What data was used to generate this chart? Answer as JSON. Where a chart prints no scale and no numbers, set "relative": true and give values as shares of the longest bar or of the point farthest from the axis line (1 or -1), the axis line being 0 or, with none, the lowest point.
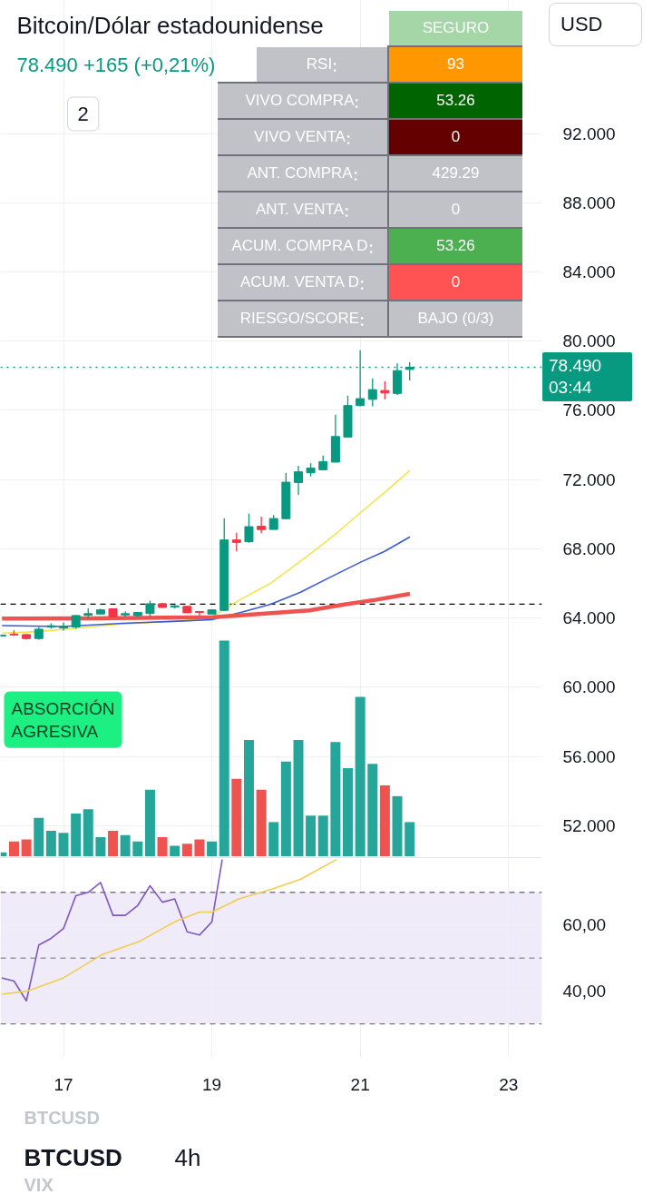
{
  "chart_data": [
    {
      "type": "candlestick",
      "title": "Bitcoin/Dólar estadounidense",
      "subtitle": "78.490 +165 (+0,21%)",
      "x": [
        16.167,
        16.333,
        16.5,
        16.667,
        16.833,
        17,
        17.167,
        17.333,
        17.5,
        17.667,
        17.833,
        18,
        18.167,
        18.333,
        18.5,
        18.667,
        18.833,
        19,
        19.167,
        19.333,
        19.5,
        19.667,
        19.833,
        20,
        20.167,
        20.333,
        20.5,
        20.667,
        20.833,
        21,
        21.167,
        21.333,
        21.5,
        21.667
      ],
      "ohlc": [
        [
          62.96,
          63.03,
          62.93,
          63.01
        ],
        [
          63.06,
          63.3,
          62.95,
          63.02
        ],
        [
          63.04,
          63.07,
          62.74,
          62.81
        ],
        [
          62.81,
          63.48,
          62.74,
          63.35
        ],
        [
          63.48,
          63.69,
          63.37,
          63.55
        ],
        [
          63.42,
          63.74,
          63.27,
          63.51
        ],
        [
          63.48,
          64.18,
          63.37,
          64.14
        ],
        [
          64.16,
          64.56,
          63.97,
          64.25
        ],
        [
          64.23,
          64.53,
          64.21,
          64.47
        ],
        [
          64.53,
          64.56,
          64.04,
          64.07
        ],
        [
          64.18,
          64.39,
          64.04,
          64.25
        ],
        [
          64.14,
          64.35,
          64.04,
          64.32
        ],
        [
          64.26,
          65,
          64.04,
          64.82
        ],
        [
          64.82,
          64.87,
          64.6,
          64.61
        ],
        [
          64.63,
          64.75,
          64.54,
          64.7
        ],
        [
          64.67,
          64.68,
          64.28,
          64.3
        ],
        [
          64.37,
          64.39,
          64.14,
          64.32
        ],
        [
          64.23,
          64.49,
          64.21,
          64.47
        ],
        [
          64.44,
          69.77,
          64.4,
          68.51
        ],
        [
          68.51,
          68.93,
          67.85,
          68.37
        ],
        [
          68.41,
          70.03,
          68.35,
          69.28
        ],
        [
          69.3,
          69.86,
          68.9,
          69.11
        ],
        [
          69.12,
          69.95,
          69.11,
          69.75
        ],
        [
          69.74,
          72.39,
          69.72,
          71.85
        ],
        [
          71.83,
          72.8,
          71.12,
          72.45
        ],
        [
          72.39,
          72.95,
          72.18,
          72.67
        ],
        [
          72.57,
          73.39,
          72.53,
          73.04
        ],
        [
          73.01,
          75.75,
          72.99,
          74.49
        ],
        [
          74.46,
          76.85,
          74.44,
          76.28
        ],
        [
          76.28,
          79.48,
          76.24,
          76.68
        ],
        [
          76.64,
          77.85,
          76.24,
          77.2
        ],
        [
          77.15,
          77.68,
          76.64,
          77.01
        ],
        [
          76.98,
          78.72,
          76.89,
          78.3
        ],
        [
          78.37,
          78.78,
          77.73,
          78.49
        ]
      ],
      "colors": [
        "#089981",
        "#f23645",
        "#f23645",
        "#089981",
        "#089981",
        "#089981",
        "#089981",
        "#089981",
        "#089981",
        "#f23645",
        "#089981",
        "#089981",
        "#089981",
        "#f23645",
        "#089981",
        "#f23645",
        "#f23645",
        "#089981",
        "#089981",
        "#f23645",
        "#089981",
        "#f23645",
        "#089981",
        "#089981",
        "#089981",
        "#089981",
        "#089981",
        "#089981",
        "#089981",
        "#089981",
        "#089981",
        "#f23645",
        "#089981",
        "#089981"
      ],
      "series": [
        {
          "type": "line",
          "color": "#f5e44a",
          "x": [
            16.171,
            16.659,
            16.988,
            17.793,
            18.61,
            19.0,
            19.378,
            19.793,
            20.317,
            20.683,
            21.012,
            21.329,
            21.671
          ],
          "values": [
            63.13,
            63.21,
            63.34,
            63.65,
            63.83,
            64.05,
            65.05,
            66.01,
            67.67,
            68.9,
            70.12,
            71.26,
            72.53
          ]
        },
        {
          "type": "line",
          "color": "#3a5bd9",
          "x": [
            16.171,
            16.988,
            17.793,
            18.61,
            19.0,
            19.378,
            19.793,
            20.195,
            20.598,
            21.012,
            21.329,
            21.671
          ],
          "values": [
            63.56,
            63.51,
            63.69,
            63.83,
            63.9,
            64.31,
            64.79,
            65.49,
            66.36,
            67.24,
            67.85,
            68.69
          ]
        },
        {
          "type": "line",
          "color": "#ef5350",
          "x": [
            16.171,
            17.39,
            19.012,
            19.585,
            20.317,
            20.805,
            21.207,
            21.671
          ],
          "values": [
            63.97,
            63.98,
            64.04,
            64.21,
            64.44,
            64.79,
            65.05,
            65.4
          ]
        }
      ],
      "xlim": [
        16.15,
        23.45
      ],
      "xticks": [
        17,
        19,
        21,
        23
      ],
      "ylim": [
        50.2,
        99.7
      ],
      "yticks": [
        {
          "value": 52,
          "label": "52.000"
        },
        {
          "value": 56,
          "label": "56.000"
        },
        {
          "value": 60,
          "label": "60.000"
        },
        {
          "value": 64,
          "label": "64.000"
        },
        {
          "value": 68,
          "label": "68.000"
        },
        {
          "value": 72,
          "label": "72.000"
        },
        {
          "value": 76,
          "label": "76.000"
        },
        {
          "value": 80,
          "label": "80.000"
        },
        {
          "value": 84,
          "label": "84.000"
        },
        {
          "value": 88,
          "label": "88.000"
        },
        {
          "value": 92,
          "label": "92.000"
        }
      ],
      "tick_labels": "y",
      "grid": true,
      "ref_lines": [
        {
          "axis": "y",
          "value": 64.8,
          "color": "#000000",
          "line_style": "dashed"
        },
        {
          "axis": "y",
          "value": 78.49,
          "label": "78.490",
          "color": "#089981",
          "line_style": "dotted"
        }
      ],
      "annotations": [
        "03:44",
        "2",
        "USD",
        "BTCUSD",
        "BTCUSD",
        "4h",
        "VIX"
      ]
    },
    {
      "type": "bar",
      "relative": true,
      "x": [
        16.167,
        16.333,
        16.5,
        16.667,
        16.833,
        17,
        17.167,
        17.333,
        17.5,
        17.667,
        17.833,
        18,
        18.167,
        18.333,
        18.5,
        18.667,
        18.833,
        19,
        19.167,
        19.333,
        19.5,
        19.667,
        19.833,
        20,
        20.167,
        20.333,
        20.5,
        20.667,
        20.833,
        21,
        21.167,
        21.333,
        21.5,
        21.667
      ],
      "values": [
        0.02,
        0.07,
        0.08,
        0.18,
        0.12,
        0.11,
        0.2,
        0.22,
        0.09,
        0.12,
        0.1,
        0.07,
        0.31,
        0.09,
        0.05,
        0.06,
        0.08,
        0.07,
        1,
        0.36,
        0.54,
        0.31,
        0.16,
        0.44,
        0.54,
        0.19,
        0.19,
        0.53,
        0.41,
        0.74,
        0.43,
        0.33,
        0.28,
        0.16
      ],
      "colors": [
        "#26a69a",
        "#ef5350",
        "#ef5350",
        "#26a69a",
        "#26a69a",
        "#26a69a",
        "#26a69a",
        "#26a69a",
        "#26a69a",
        "#ef5350",
        "#26a69a",
        "#26a69a",
        "#26a69a",
        "#ef5350",
        "#26a69a",
        "#ef5350",
        "#ef5350",
        "#26a69a",
        "#26a69a",
        "#ef5350",
        "#26a69a",
        "#ef5350",
        "#26a69a",
        "#26a69a",
        "#26a69a",
        "#26a69a",
        "#26a69a",
        "#26a69a",
        "#26a69a",
        "#26a69a",
        "#26a69a",
        "#ef5350",
        "#26a69a",
        "#26a69a"
      ],
      "xlim": [
        16.15,
        23.45
      ],
      "tick_labels": false,
      "annotations": [
        "ABSORCIÓN AGRESIVA"
      ]
    },
    {
      "type": "line",
      "series": [
        {
          "color": "#7e57c2",
          "x": [
            16.167,
            16.333,
            16.5,
            16.667,
            16.833,
            17,
            17.167,
            17.333,
            17.5,
            17.667,
            17.833,
            18,
            18.167,
            18.333,
            18.5,
            18.667,
            18.833,
            19,
            19.14
          ],
          "values": [
            44,
            43,
            37,
            54,
            56,
            59,
            69,
            70,
            73,
            63,
            63,
            66,
            72,
            67,
            68,
            58,
            57,
            61,
            80
          ]
        },
        {
          "color": "#f2cc4e",
          "x": [
            16.171,
            16.518,
            17.0,
            17.515,
            18.02,
            18.496,
            18.832,
            19.0,
            19.364,
            19.81,
            20.2,
            20.68
          ],
          "values": [
            39,
            40,
            44,
            51,
            55,
            61,
            64,
            64,
            68,
            71,
            74,
            80
          ]
        }
      ],
      "xlim": [
        16.15,
        23.45
      ],
      "xticks": [
        17,
        19,
        21,
        23
      ],
      "ylim": [
        19.8,
        80.3
      ],
      "yticks": [
        {
          "value": 40,
          "label": "40,00"
        },
        {
          "value": 60,
          "label": "60,00"
        }
      ],
      "grid": true,
      "ref_lines": [
        {
          "axis": "y",
          "value": 70,
          "color": "#787b86",
          "line_style": "dashed"
        },
        {
          "axis": "y",
          "value": 50,
          "color": "#9598a1",
          "line_style": "dashed"
        },
        {
          "axis": "y",
          "value": 30,
          "color": "#787b86",
          "line_style": "dashed"
        }
      ],
      "bands": [
        {
          "axis": "y",
          "from": 30,
          "to": 70,
          "color": "#efebf8"
        }
      ]
    },
    {
      "type": "other",
      "title": "SEGURO",
      "categories": [
        "RSI",
        "VIVO COMPRA",
        "VIVO VENTA",
        "ANT. COMPRA",
        "ANT. VENTA",
        "ACUM. COMPRA D",
        "ACUM. VENTA D",
        "RIESGO/SCORE"
      ],
      "values": [
        93,
        53.26,
        0,
        429.29,
        0,
        53.26,
        0,
        null
      ],
      "value_labels": [
        "93",
        "53.26",
        "0",
        "429.29",
        "0",
        "53.26",
        "0",
        "BAJO (0/3)"
      ],
      "colors": [
        "#ff9800",
        "#006400",
        "#640000",
        "#c0c2c7",
        "#c0c2c7",
        "#4caf50",
        "#ff5252",
        "#c0c2c7"
      ]
    }
  ]
}
